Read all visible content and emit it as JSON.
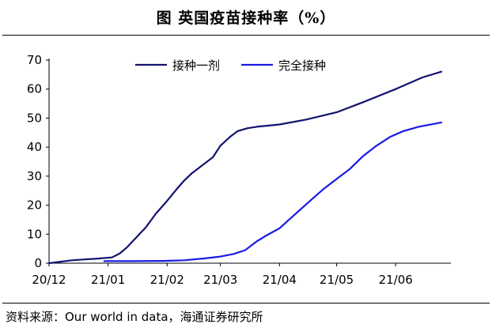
{
  "title": "图  英国疫苗接种率（%）",
  "source": "资料来源：Our world in data，海通证券研究所",
  "chart_data": {
    "type": "line",
    "ylim": [
      0,
      70
    ],
    "yticks": [
      0,
      10,
      20,
      30,
      40,
      50,
      60,
      70
    ],
    "xlim": [
      "2020-12-01",
      "2021-06-30"
    ],
    "xticks": [
      {
        "label": "20/12",
        "date": "2020-12-01"
      },
      {
        "label": "21/01",
        "date": "2021-01-01"
      },
      {
        "label": "21/02",
        "date": "2021-02-01"
      },
      {
        "label": "21/03",
        "date": "2021-03-01"
      },
      {
        "label": "21/04",
        "date": "2021-04-01"
      },
      {
        "label": "21/05",
        "date": "2021-05-01"
      },
      {
        "label": "21/06",
        "date": "2021-06-01"
      }
    ],
    "legend_position": "top",
    "grid": false,
    "series": [
      {
        "name": "接种一剂",
        "color": "#12126e",
        "points": [
          [
            "2020-12-01",
            0.0
          ],
          [
            "2020-12-08",
            0.6
          ],
          [
            "2020-12-13",
            1.0
          ],
          [
            "2020-12-20",
            1.3
          ],
          [
            "2020-12-27",
            1.6
          ],
          [
            "2021-01-03",
            2.0
          ],
          [
            "2021-01-07",
            3.3
          ],
          [
            "2021-01-11",
            5.5
          ],
          [
            "2021-01-16",
            9.0
          ],
          [
            "2021-01-21",
            12.5
          ],
          [
            "2021-01-26",
            17.0
          ],
          [
            "2021-02-01",
            21.5
          ],
          [
            "2021-02-06",
            25.5
          ],
          [
            "2021-02-10",
            28.5
          ],
          [
            "2021-02-14",
            31.0
          ],
          [
            "2021-02-19",
            33.5
          ],
          [
            "2021-02-25",
            36.5
          ],
          [
            "2021-03-01",
            40.5
          ],
          [
            "2021-03-06",
            43.5
          ],
          [
            "2021-03-10",
            45.5
          ],
          [
            "2021-03-15",
            46.5
          ],
          [
            "2021-03-20",
            47.0
          ],
          [
            "2021-04-01",
            47.8
          ],
          [
            "2021-04-15",
            49.5
          ],
          [
            "2021-05-01",
            52.0
          ],
          [
            "2021-05-15",
            55.5
          ],
          [
            "2021-06-01",
            60.0
          ],
          [
            "2021-06-15",
            64.0
          ],
          [
            "2021-06-25",
            66.0
          ]
        ]
      },
      {
        "name": "完全接种",
        "color": "#1a1ae6",
        "points": [
          [
            "2020-12-30",
            0.7
          ],
          [
            "2021-01-15",
            0.7
          ],
          [
            "2021-01-30",
            0.8
          ],
          [
            "2021-02-10",
            1.0
          ],
          [
            "2021-02-20",
            1.6
          ],
          [
            "2021-03-01",
            2.3
          ],
          [
            "2021-03-08",
            3.2
          ],
          [
            "2021-03-14",
            4.5
          ],
          [
            "2021-03-20",
            7.5
          ],
          [
            "2021-03-25",
            9.5
          ],
          [
            "2021-04-01",
            12.0
          ],
          [
            "2021-04-06",
            15.0
          ],
          [
            "2021-04-12",
            18.5
          ],
          [
            "2021-04-18",
            22.0
          ],
          [
            "2021-04-24",
            25.5
          ],
          [
            "2021-05-01",
            29.0
          ],
          [
            "2021-05-08",
            32.5
          ],
          [
            "2021-05-15",
            37.0
          ],
          [
            "2021-05-22",
            40.5
          ],
          [
            "2021-05-29",
            43.5
          ],
          [
            "2021-06-05",
            45.5
          ],
          [
            "2021-06-13",
            47.0
          ],
          [
            "2021-06-25",
            48.5
          ]
        ]
      }
    ]
  }
}
